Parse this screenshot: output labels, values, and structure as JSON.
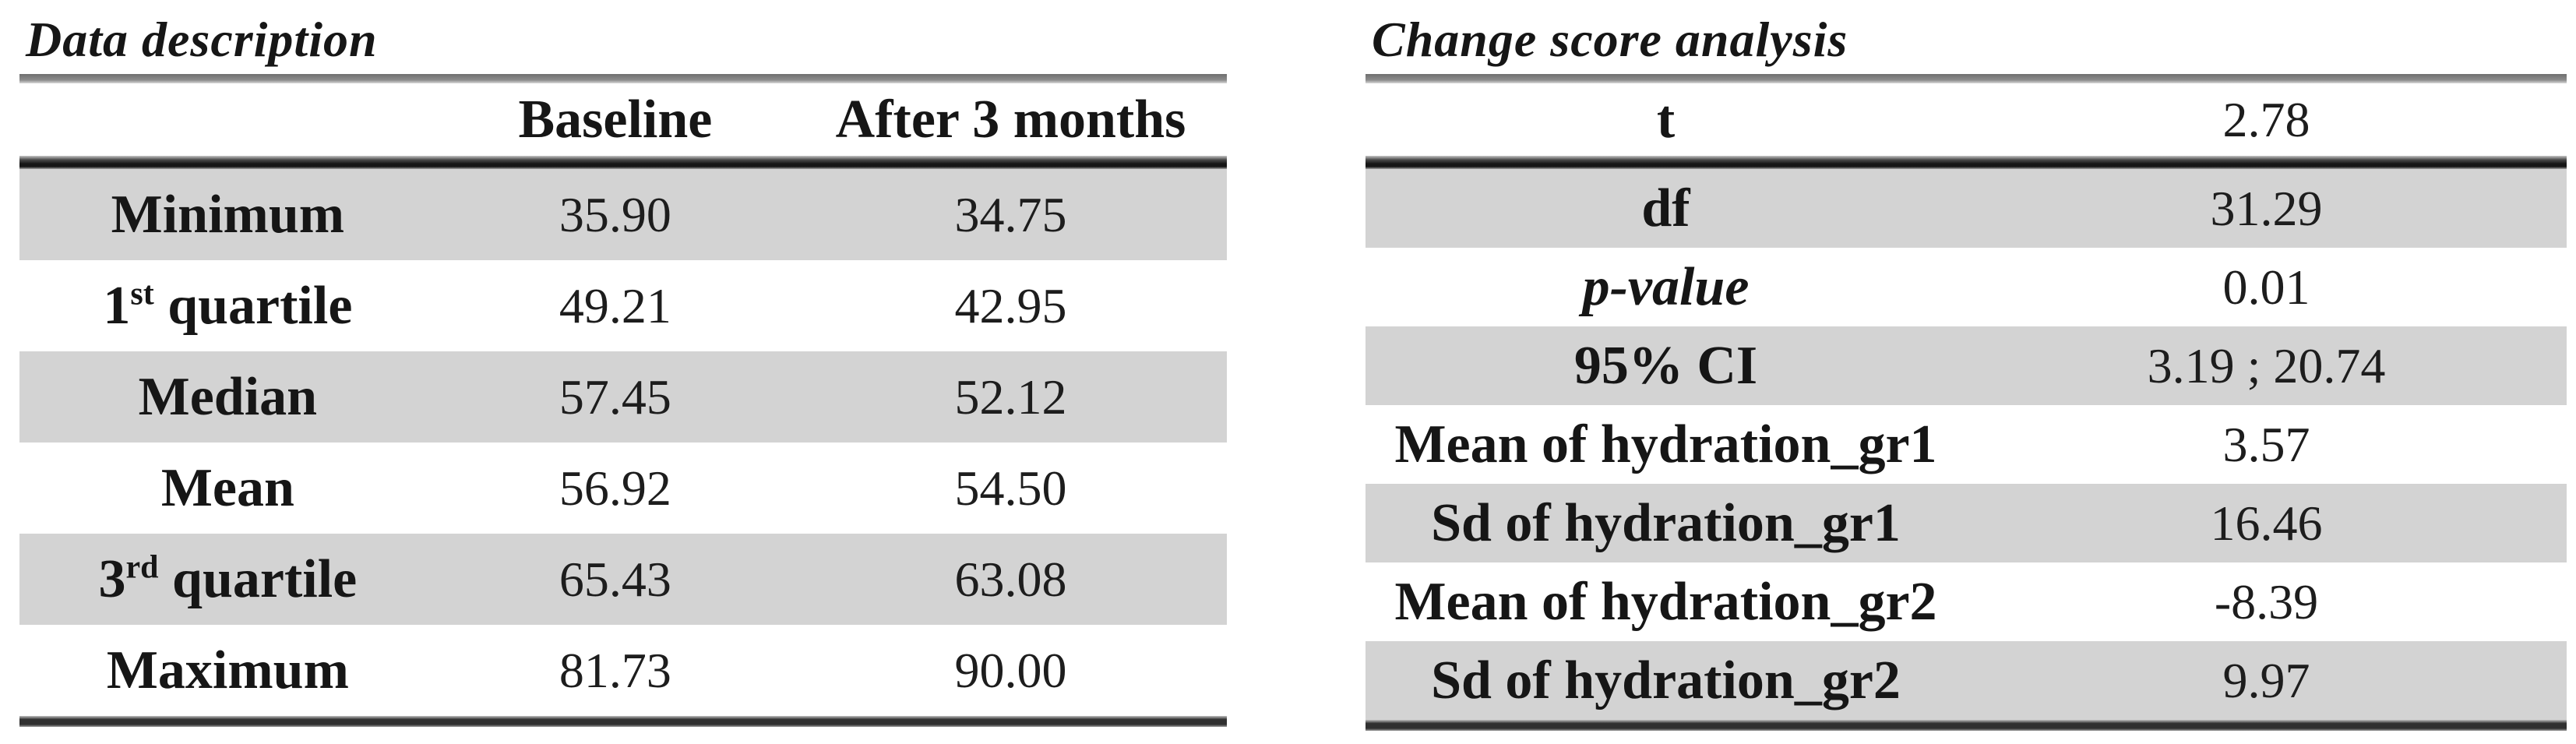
{
  "colors": {
    "background": "#ffffff",
    "row_stripe": "#d3d3d3",
    "rule_gray": "#8c8c8c",
    "rule_dark": "#161616",
    "text": "#161616"
  },
  "left_table": {
    "title": "Data description",
    "columns": [
      "",
      "Baseline",
      "After 3 months"
    ],
    "rows": [
      {
        "label_pre": "Minimum",
        "label_sup": "",
        "label_post": "",
        "baseline": "35.90",
        "after": "34.75"
      },
      {
        "label_pre": "1",
        "label_sup": "st",
        "label_post": " quartile",
        "baseline": "49.21",
        "after": "42.95"
      },
      {
        "label_pre": "Median",
        "label_sup": "",
        "label_post": "",
        "baseline": "57.45",
        "after": "52.12"
      },
      {
        "label_pre": "Mean",
        "label_sup": "",
        "label_post": "",
        "baseline": "56.92",
        "after": "54.50"
      },
      {
        "label_pre": "3",
        "label_sup": "rd",
        "label_post": " quartile",
        "baseline": "65.43",
        "after": "63.08"
      },
      {
        "label_pre": "Maximum",
        "label_sup": "",
        "label_post": "",
        "baseline": "81.73",
        "after": "90.00"
      }
    ]
  },
  "right_table": {
    "title": "Change score analysis",
    "rows": [
      {
        "label": "t",
        "value": "2.78"
      },
      {
        "label": "df",
        "value": "31.29"
      },
      {
        "label": "p-value",
        "value": "0.01"
      },
      {
        "label": "95% CI",
        "value": "3.19 ; 20.74"
      },
      {
        "label": "Mean of hydration_gr1",
        "value": "3.57"
      },
      {
        "label": "Sd of hydration_gr1",
        "value": "16.46"
      },
      {
        "label": "Mean of hydration_gr2",
        "value": "-8.39"
      },
      {
        "label": "Sd of hydration_gr2",
        "value": "9.97"
      }
    ]
  }
}
